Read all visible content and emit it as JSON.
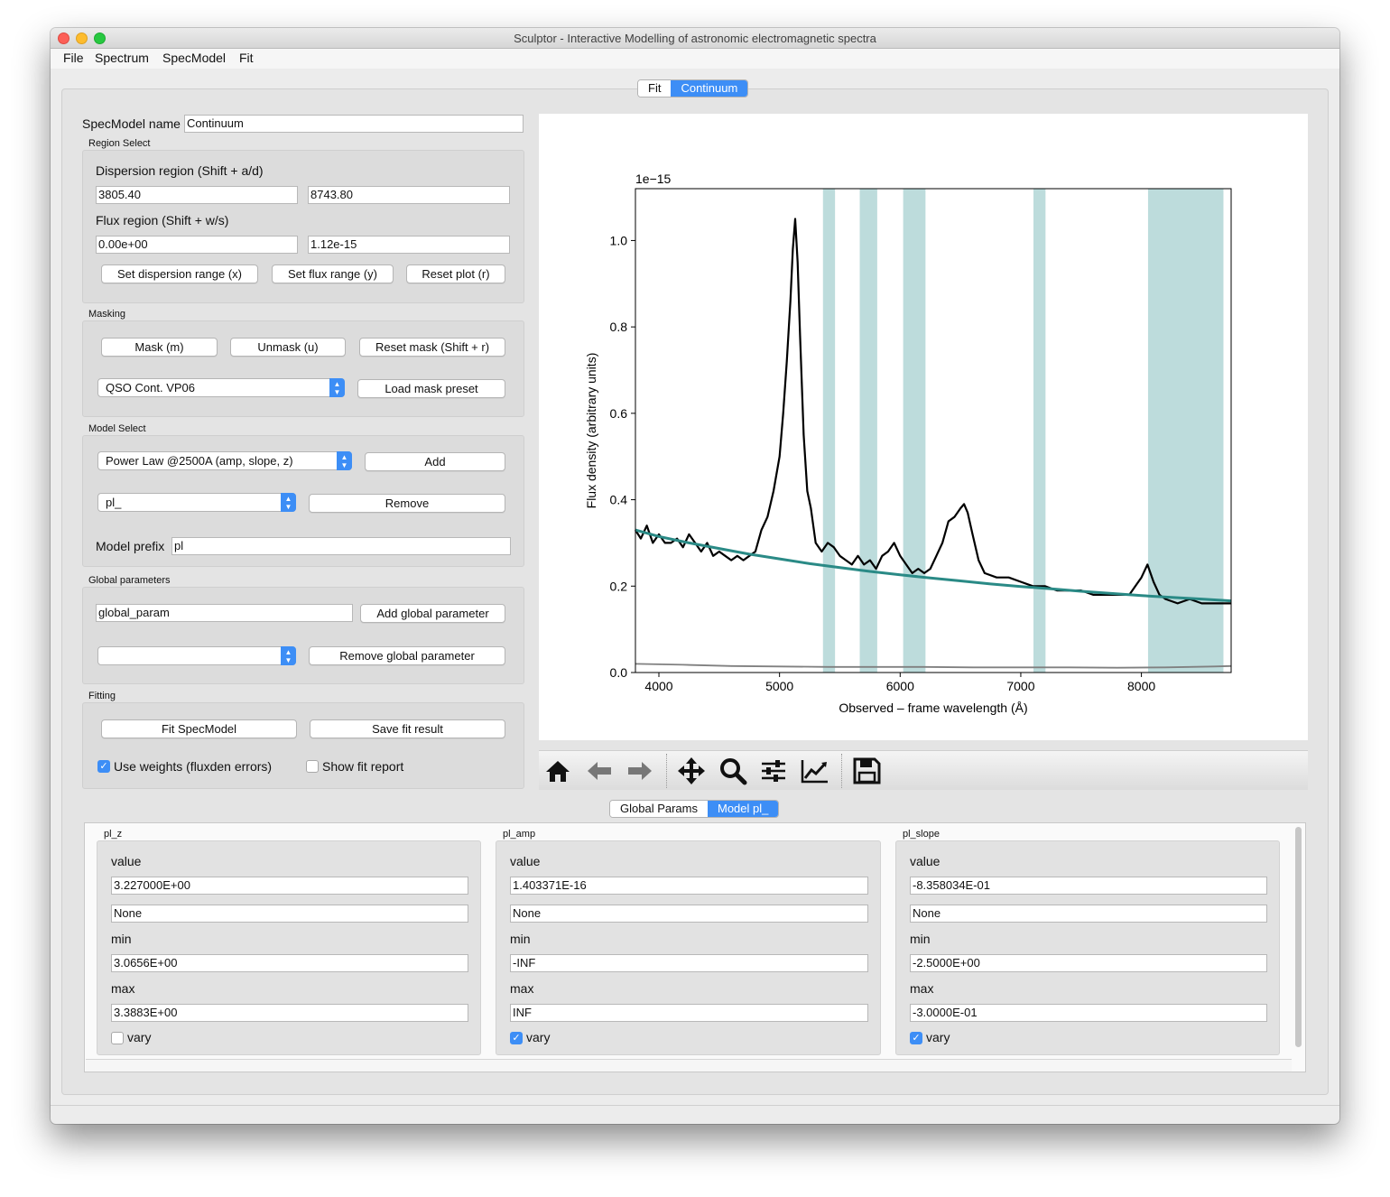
{
  "window": {
    "title": "Sculptor - Interactive Modelling of astronomic electromagnetic spectra"
  },
  "menu": [
    "File",
    "Spectrum",
    "SpecModel",
    "Fit"
  ],
  "main_tabs": [
    {
      "label": "Fit",
      "active": false
    },
    {
      "label": "Continuum",
      "active": true
    }
  ],
  "specmodel": {
    "name_label": "SpecModel name",
    "name_value": "Continuum"
  },
  "region_select": {
    "title": "Region Select",
    "dispersion_label": "Dispersion region (Shift + a/d)",
    "disp_min": "3805.40",
    "disp_max": "8743.80",
    "flux_label": "Flux region (Shift + w/s)",
    "flux_min": "0.00e+00",
    "flux_max": "1.12e-15",
    "set_disp_btn": "Set dispersion range (x)",
    "set_flux_btn": "Set flux range (y)",
    "reset_plot_btn": "Reset plot (r)"
  },
  "masking": {
    "title": "Masking",
    "mask_btn": "Mask (m)",
    "unmask_btn": "Unmask (u)",
    "reset_mask_btn": "Reset mask (Shift + r)",
    "preset_value": "QSO Cont. VP06",
    "load_preset_btn": "Load mask preset"
  },
  "model_select": {
    "title": "Model Select",
    "model_value": "Power Law @2500A (amp, slope, z)",
    "add_btn": "Add",
    "prefix_combo_value": "pl_",
    "remove_btn": "Remove",
    "prefix_label": "Model prefix",
    "prefix_value": "pl"
  },
  "global_params": {
    "title": "Global parameters",
    "param_value": "global_param",
    "add_btn": "Add global parameter",
    "combo_value": "",
    "remove_btn": "Remove global parameter"
  },
  "fitting": {
    "title": "Fitting",
    "fit_btn": "Fit SpecModel",
    "save_btn": "Save fit result",
    "use_weights_label": "Use weights (fluxden errors)",
    "use_weights_checked": true,
    "show_report_label": "Show fit report",
    "show_report_checked": false
  },
  "bottom_tabs": [
    {
      "label": "Global Params",
      "active": false
    },
    {
      "label": "Model pl_",
      "active": true
    }
  ],
  "params": [
    {
      "name": "pl_z",
      "value_label": "value",
      "value": "3.227000E+00",
      "expr": "None",
      "min_label": "min",
      "min": "3.0656E+00",
      "max_label": "max",
      "max": "3.3883E+00",
      "vary_label": "vary",
      "vary": false
    },
    {
      "name": "pl_amp",
      "value_label": "value",
      "value": "1.403371E-16",
      "expr": "None",
      "min_label": "min",
      "min": "-INF",
      "max_label": "max",
      "max": "INF",
      "vary_label": "vary",
      "vary": true
    },
    {
      "name": "pl_slope",
      "value_label": "value",
      "value": "-8.358034E-01",
      "expr": "None",
      "min_label": "min",
      "min": "-2.5000E+00",
      "max_label": "max",
      "max": "-3.0000E-01",
      "vary_label": "vary",
      "vary": true
    }
  ],
  "toolbar_icons": [
    "home-icon",
    "back-arrow-icon",
    "forward-arrow-icon",
    "pan-icon",
    "zoom-icon",
    "subplots-icon",
    "edit-axis-icon",
    "save-icon"
  ],
  "chart_data": {
    "type": "line",
    "xlabel": "Observed – frame wavelength (Å)",
    "ylabel": "Flux density (arbitrary units)",
    "offset_label": "1e−15",
    "xlim": [
      3805.4,
      8743.8
    ],
    "ylim": [
      0.0,
      1.12
    ],
    "x_ticks": [
      4000,
      5000,
      6000,
      7000,
      8000
    ],
    "x_tick_labels": [
      "4000",
      "5000",
      "6000",
      "7000",
      "8000"
    ],
    "y_ticks": [
      0.0,
      0.2,
      0.4,
      0.6,
      0.8,
      1.0
    ],
    "y_tick_labels": [
      "0.0",
      "0.2",
      "0.4",
      "0.6",
      "0.8",
      "1.0"
    ],
    "mask_regions": [
      [
        5360,
        5460
      ],
      [
        5665,
        5810
      ],
      [
        6025,
        6210
      ],
      [
        7105,
        7205
      ],
      [
        8055,
        8680
      ]
    ],
    "mask_color": "#bddcdc",
    "series": [
      {
        "color": "#000000",
        "x": [
          3805,
          3850,
          3900,
          3950,
          4000,
          4050,
          4100,
          4150,
          4200,
          4250,
          4300,
          4350,
          4400,
          4450,
          4500,
          4550,
          4600,
          4650,
          4700,
          4750,
          4800,
          4850,
          4900,
          4950,
          5000,
          5030,
          5060,
          5090,
          5110,
          5130,
          5150,
          5170,
          5200,
          5230,
          5260,
          5300,
          5350,
          5400,
          5450,
          5500,
          5550,
          5600,
          5650,
          5700,
          5750,
          5800,
          5850,
          5900,
          5950,
          6000,
          6050,
          6100,
          6150,
          6200,
          6250,
          6300,
          6350,
          6400,
          6450,
          6500,
          6530,
          6560,
          6600,
          6650,
          6700,
          6800,
          6900,
          7000,
          7100,
          7200,
          7300,
          7400,
          7500,
          7600,
          7700,
          7800,
          7900,
          7950,
          8000,
          8050,
          8100,
          8150,
          8200,
          8300,
          8400,
          8500,
          8600,
          8700,
          8743
        ],
        "y": [
          0.33,
          0.31,
          0.34,
          0.3,
          0.32,
          0.3,
          0.3,
          0.31,
          0.29,
          0.32,
          0.3,
          0.28,
          0.3,
          0.27,
          0.28,
          0.27,
          0.26,
          0.27,
          0.26,
          0.27,
          0.28,
          0.33,
          0.36,
          0.42,
          0.5,
          0.6,
          0.72,
          0.86,
          0.98,
          1.05,
          0.95,
          0.78,
          0.55,
          0.42,
          0.38,
          0.3,
          0.28,
          0.3,
          0.29,
          0.27,
          0.26,
          0.25,
          0.27,
          0.25,
          0.26,
          0.24,
          0.27,
          0.28,
          0.3,
          0.27,
          0.25,
          0.23,
          0.24,
          0.23,
          0.24,
          0.27,
          0.3,
          0.35,
          0.36,
          0.38,
          0.39,
          0.37,
          0.32,
          0.26,
          0.23,
          0.22,
          0.22,
          0.21,
          0.2,
          0.2,
          0.19,
          0.19,
          0.19,
          0.18,
          0.18,
          0.18,
          0.18,
          0.2,
          0.22,
          0.25,
          0.21,
          0.18,
          0.17,
          0.16,
          0.17,
          0.16,
          0.16,
          0.16,
          0.16
        ]
      },
      {
        "color": "#2a8a86",
        "x": [
          3805,
          4000,
          4250,
          4500,
          4750,
          5000,
          5250,
          5500,
          5750,
          6000,
          6250,
          6500,
          6750,
          7000,
          7250,
          7500,
          7750,
          8000,
          8250,
          8500,
          8743
        ],
        "y": [
          0.33,
          0.315,
          0.3,
          0.287,
          0.274,
          0.263,
          0.252,
          0.243,
          0.234,
          0.226,
          0.219,
          0.212,
          0.205,
          0.199,
          0.194,
          0.188,
          0.183,
          0.178,
          0.174,
          0.17,
          0.166
        ]
      },
      {
        "color": "#808080",
        "x": [
          3805,
          4200,
          4600,
          5000,
          5400,
          5800,
          6200,
          6600,
          7000,
          7400,
          7800,
          8200,
          8600,
          8743
        ],
        "y": [
          0.02,
          0.018,
          0.015,
          0.014,
          0.013,
          0.013,
          0.013,
          0.012,
          0.012,
          0.012,
          0.011,
          0.012,
          0.014,
          0.015
        ]
      }
    ]
  }
}
